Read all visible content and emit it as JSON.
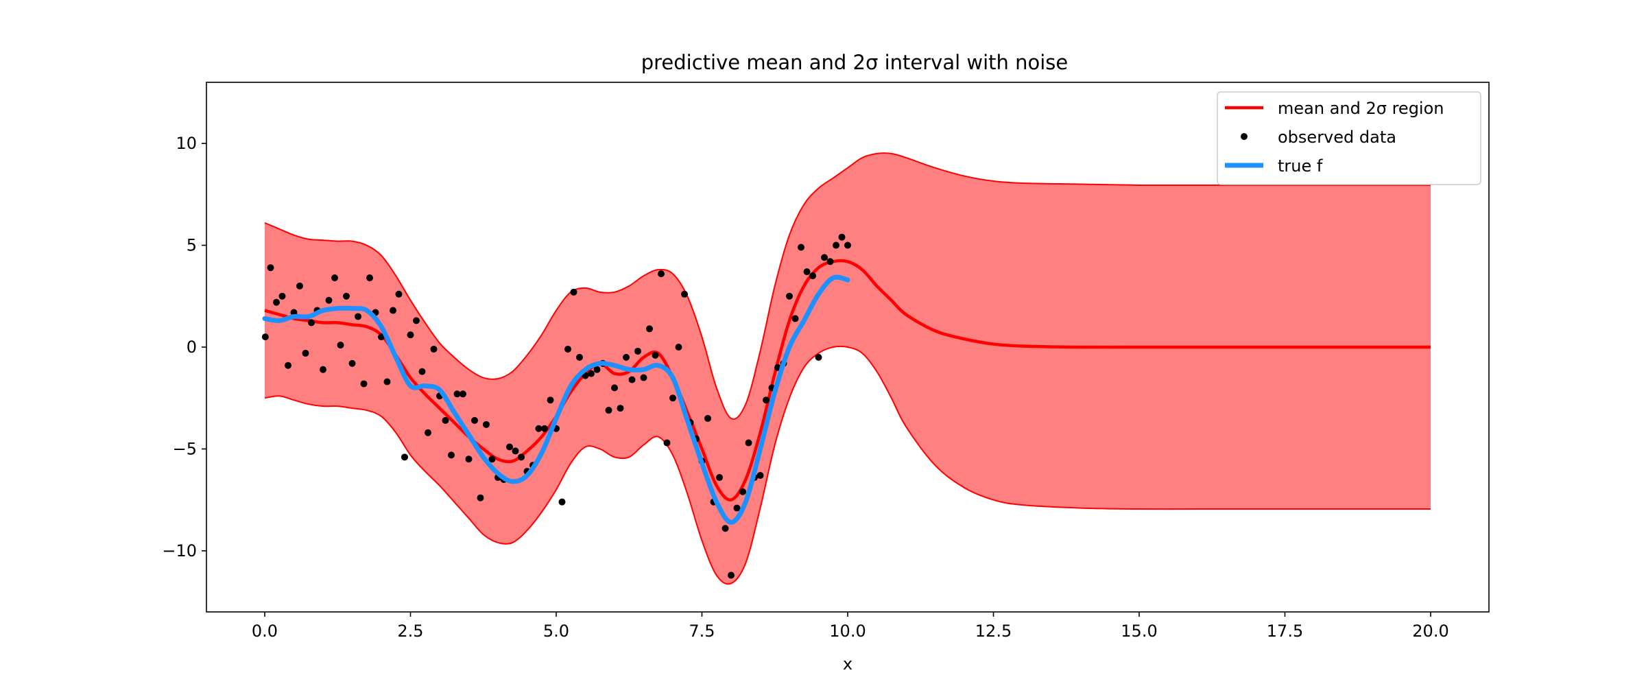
{
  "chart_data": {
    "type": "line",
    "title": "predictive mean and 2σ interval with noise",
    "xlabel": "x",
    "ylabel": "",
    "xlim": [
      -1,
      21
    ],
    "ylim": [
      -13,
      13
    ],
    "x_ticks": [
      0,
      2.5,
      5,
      7.5,
      10,
      12.5,
      15,
      17.5,
      20
    ],
    "x_tick_labels": [
      "0.0",
      "2.5",
      "5.0",
      "7.5",
      "10.0",
      "12.5",
      "15.0",
      "17.5",
      "20.0"
    ],
    "y_ticks": [
      -10,
      -5,
      0,
      5,
      10
    ],
    "y_tick_labels": [
      "−10",
      "−5",
      "0",
      "5",
      "10"
    ],
    "grid": false,
    "legend_position": "upper right",
    "legend": [
      {
        "label": "mean and 2σ region",
        "kind": "line",
        "color": "#ff0000"
      },
      {
        "label": "observed data",
        "kind": "marker",
        "color": "#000000"
      },
      {
        "label": "true f",
        "kind": "line",
        "color": "#1e90ff"
      }
    ],
    "colors": {
      "mean": "#ff0000",
      "band_fill": "#ff8080",
      "band_edge": "#ff0000",
      "points": "#000000",
      "true_f": "#1e90ff"
    },
    "series": [
      {
        "name": "mean and 2σ region",
        "role": "mean",
        "x": [
          0,
          0.25,
          0.5,
          0.75,
          1,
          1.25,
          1.5,
          1.75,
          2,
          2.25,
          2.5,
          2.75,
          3,
          3.25,
          3.5,
          3.75,
          4,
          4.25,
          4.5,
          4.75,
          5,
          5.25,
          5.5,
          5.75,
          6,
          6.25,
          6.5,
          6.75,
          7,
          7.25,
          7.5,
          7.75,
          8,
          8.25,
          8.5,
          8.75,
          9,
          9.25,
          9.5,
          9.75,
          10,
          10.25,
          10.5,
          10.75,
          11,
          11.5,
          12,
          12.5,
          13,
          14,
          15,
          16,
          17,
          18,
          19,
          20
        ],
        "y": [
          1.8,
          1.6,
          1.4,
          1.3,
          1.2,
          1.2,
          1.1,
          1.0,
          0.6,
          -0.4,
          -1.5,
          -2.3,
          -3.0,
          -3.7,
          -4.4,
          -5.0,
          -5.5,
          -5.6,
          -5.1,
          -4.4,
          -3.4,
          -2.2,
          -1.3,
          -0.8,
          -1.3,
          -1.2,
          -0.5,
          -0.3,
          -1.5,
          -3.2,
          -5.0,
          -6.8,
          -7.5,
          -6.5,
          -4.2,
          -1.3,
          1.3,
          3.0,
          3.9,
          4.2,
          4.2,
          3.8,
          3.0,
          2.3,
          1.6,
          0.8,
          0.4,
          0.15,
          0.05,
          0,
          0,
          0,
          0,
          0,
          0,
          0
        ]
      },
      {
        "name": "2σ upper",
        "role": "band_upper",
        "x": [
          0,
          0.25,
          0.5,
          0.75,
          1,
          1.25,
          1.5,
          1.75,
          2,
          2.25,
          2.5,
          2.75,
          3,
          3.25,
          3.5,
          3.75,
          4,
          4.25,
          4.5,
          4.75,
          5,
          5.25,
          5.5,
          5.75,
          6,
          6.25,
          6.5,
          6.75,
          7,
          7.25,
          7.5,
          7.75,
          8,
          8.25,
          8.5,
          8.75,
          9,
          9.25,
          9.5,
          9.75,
          10,
          10.25,
          10.5,
          10.75,
          11,
          11.5,
          12,
          12.5,
          13,
          14,
          15,
          16,
          17,
          18,
          19,
          20
        ],
        "y": [
          6.1,
          5.8,
          5.5,
          5.3,
          5.25,
          5.2,
          5.2,
          5.0,
          4.5,
          3.5,
          2.3,
          1.2,
          0.2,
          -0.5,
          -1.1,
          -1.5,
          -1.55,
          -1.2,
          -0.4,
          0.6,
          1.8,
          2.7,
          2.9,
          2.7,
          2.7,
          3.0,
          3.5,
          3.8,
          3.6,
          2.5,
          0.5,
          -2.0,
          -3.5,
          -2.8,
          -0.2,
          3.0,
          5.5,
          7.0,
          7.8,
          8.3,
          8.8,
          9.3,
          9.5,
          9.5,
          9.3,
          8.8,
          8.4,
          8.15,
          8.05,
          8.0,
          7.95,
          7.95,
          7.95,
          7.95,
          7.95,
          7.95
        ]
      },
      {
        "name": "2σ lower",
        "role": "band_lower",
        "x": [
          0,
          0.25,
          0.5,
          0.75,
          1,
          1.25,
          1.5,
          1.75,
          2,
          2.25,
          2.5,
          2.75,
          3,
          3.25,
          3.5,
          3.75,
          4,
          4.25,
          4.5,
          4.75,
          5,
          5.25,
          5.5,
          5.75,
          6,
          6.25,
          6.5,
          6.75,
          7,
          7.25,
          7.5,
          7.75,
          8,
          8.25,
          8.5,
          8.75,
          9,
          9.25,
          9.5,
          9.75,
          10,
          10.25,
          10.5,
          10.75,
          11,
          11.5,
          12,
          12.5,
          13,
          14,
          15,
          16,
          17,
          18,
          19,
          20
        ],
        "y": [
          -2.5,
          -2.4,
          -2.6,
          -2.8,
          -2.9,
          -2.9,
          -3.0,
          -3.1,
          -3.4,
          -4.2,
          -5.3,
          -6.1,
          -6.8,
          -7.6,
          -8.4,
          -9.2,
          -9.6,
          -9.6,
          -9.0,
          -8.1,
          -7.0,
          -5.7,
          -4.9,
          -5.0,
          -5.4,
          -5.4,
          -4.8,
          -4.4,
          -5.3,
          -7.2,
          -9.5,
          -11.2,
          -11.6,
          -10.6,
          -7.9,
          -4.8,
          -2.5,
          -1.0,
          -0.3,
          0,
          0,
          -0.3,
          -1.2,
          -2.5,
          -3.9,
          -5.8,
          -6.9,
          -7.5,
          -7.75,
          -7.9,
          -7.95,
          -7.95,
          -7.95,
          -7.95,
          -7.95,
          -7.95
        ]
      },
      {
        "name": "true f",
        "role": "true_f",
        "x": [
          0,
          0.25,
          0.5,
          0.75,
          1,
          1.25,
          1.5,
          1.75,
          2,
          2.25,
          2.5,
          2.75,
          3,
          3.25,
          3.5,
          3.75,
          4,
          4.25,
          4.5,
          4.75,
          5,
          5.25,
          5.5,
          5.75,
          6,
          6.25,
          6.5,
          6.75,
          7,
          7.25,
          7.5,
          7.75,
          8,
          8.25,
          8.5,
          8.75,
          9,
          9.25,
          9.5,
          9.75,
          10
        ],
        "y": [
          1.4,
          1.3,
          1.5,
          1.5,
          1.8,
          1.9,
          1.9,
          1.8,
          1.0,
          -0.5,
          -1.9,
          -1.9,
          -2.1,
          -3.2,
          -4.3,
          -5.4,
          -6.2,
          -6.6,
          -6.3,
          -5.2,
          -3.5,
          -1.9,
          -1.1,
          -0.8,
          -0.9,
          -1.1,
          -1.1,
          -0.9,
          -1.5,
          -3.6,
          -5.7,
          -7.6,
          -8.6,
          -7.6,
          -5.0,
          -2.2,
          0.0,
          1.3,
          2.6,
          3.4,
          3.3
        ]
      },
      {
        "name": "observed data",
        "role": "points",
        "x": [
          0.01,
          0.1,
          0.2,
          0.3,
          0.4,
          0.5,
          0.6,
          0.7,
          0.8,
          0.9,
          1.0,
          1.1,
          1.2,
          1.3,
          1.4,
          1.5,
          1.6,
          1.7,
          1.8,
          1.9,
          2.0,
          2.1,
          2.2,
          2.3,
          2.4,
          2.5,
          2.6,
          2.7,
          2.8,
          2.9,
          3.0,
          3.1,
          3.2,
          3.3,
          3.4,
          3.5,
          3.6,
          3.7,
          3.8,
          3.9,
          4.0,
          4.1,
          4.2,
          4.3,
          4.4,
          4.5,
          4.6,
          4.7,
          4.8,
          4.9,
          5.0,
          5.1,
          5.2,
          5.3,
          5.4,
          5.5,
          5.6,
          5.7,
          5.8,
          5.9,
          6.0,
          6.1,
          6.2,
          6.3,
          6.4,
          6.5,
          6.6,
          6.7,
          6.8,
          6.9,
          7.0,
          7.1,
          7.2,
          7.3,
          7.4,
          7.5,
          7.6,
          7.7,
          7.8,
          7.9,
          8.0,
          8.1,
          8.2,
          8.3,
          8.4,
          8.5,
          8.6,
          8.7,
          8.8,
          8.9,
          9.0,
          9.1,
          9.2,
          9.3,
          9.4,
          9.5,
          9.6,
          9.7,
          9.8,
          9.9,
          10.0
        ],
        "y": [
          0.5,
          3.9,
          2.2,
          2.5,
          -0.9,
          1.7,
          3.0,
          -0.3,
          1.2,
          1.8,
          -1.1,
          2.3,
          3.4,
          0.1,
          2.5,
          -0.8,
          1.5,
          -1.8,
          3.4,
          1.7,
          0.5,
          -1.7,
          1.8,
          2.6,
          -5.4,
          0.6,
          1.3,
          -1.2,
          -4.2,
          -0.1,
          -2.4,
          -3.6,
          -5.3,
          -2.3,
          -2.3,
          -5.5,
          -3.6,
          -7.4,
          -3.8,
          -5.5,
          -6.4,
          -6.5,
          -4.9,
          -5.1,
          -5.4,
          -6.1,
          -5.8,
          -4.0,
          -4.0,
          -2.6,
          -4.0,
          -7.6,
          -0.1,
          2.7,
          -0.5,
          -1.4,
          -1.3,
          -1.1,
          -0.8,
          -3.1,
          -2.0,
          -3.0,
          -0.5,
          -1.6,
          -0.2,
          -1.5,
          0.9,
          -0.4,
          3.6,
          -4.7,
          -2.5,
          0.0,
          2.6,
          -3.7,
          -4.5,
          -5.6,
          -3.5,
          -7.6,
          -6.4,
          -8.9,
          -11.2,
          -7.9,
          -7.1,
          -4.7,
          -6.4,
          -6.3,
          -2.6,
          -2.0,
          -1.0,
          -0.8,
          2.5,
          1.4,
          4.9,
          3.7,
          3.5,
          -0.5,
          4.4,
          4.2,
          5.0,
          5.4,
          5.0
        ]
      }
    ]
  }
}
